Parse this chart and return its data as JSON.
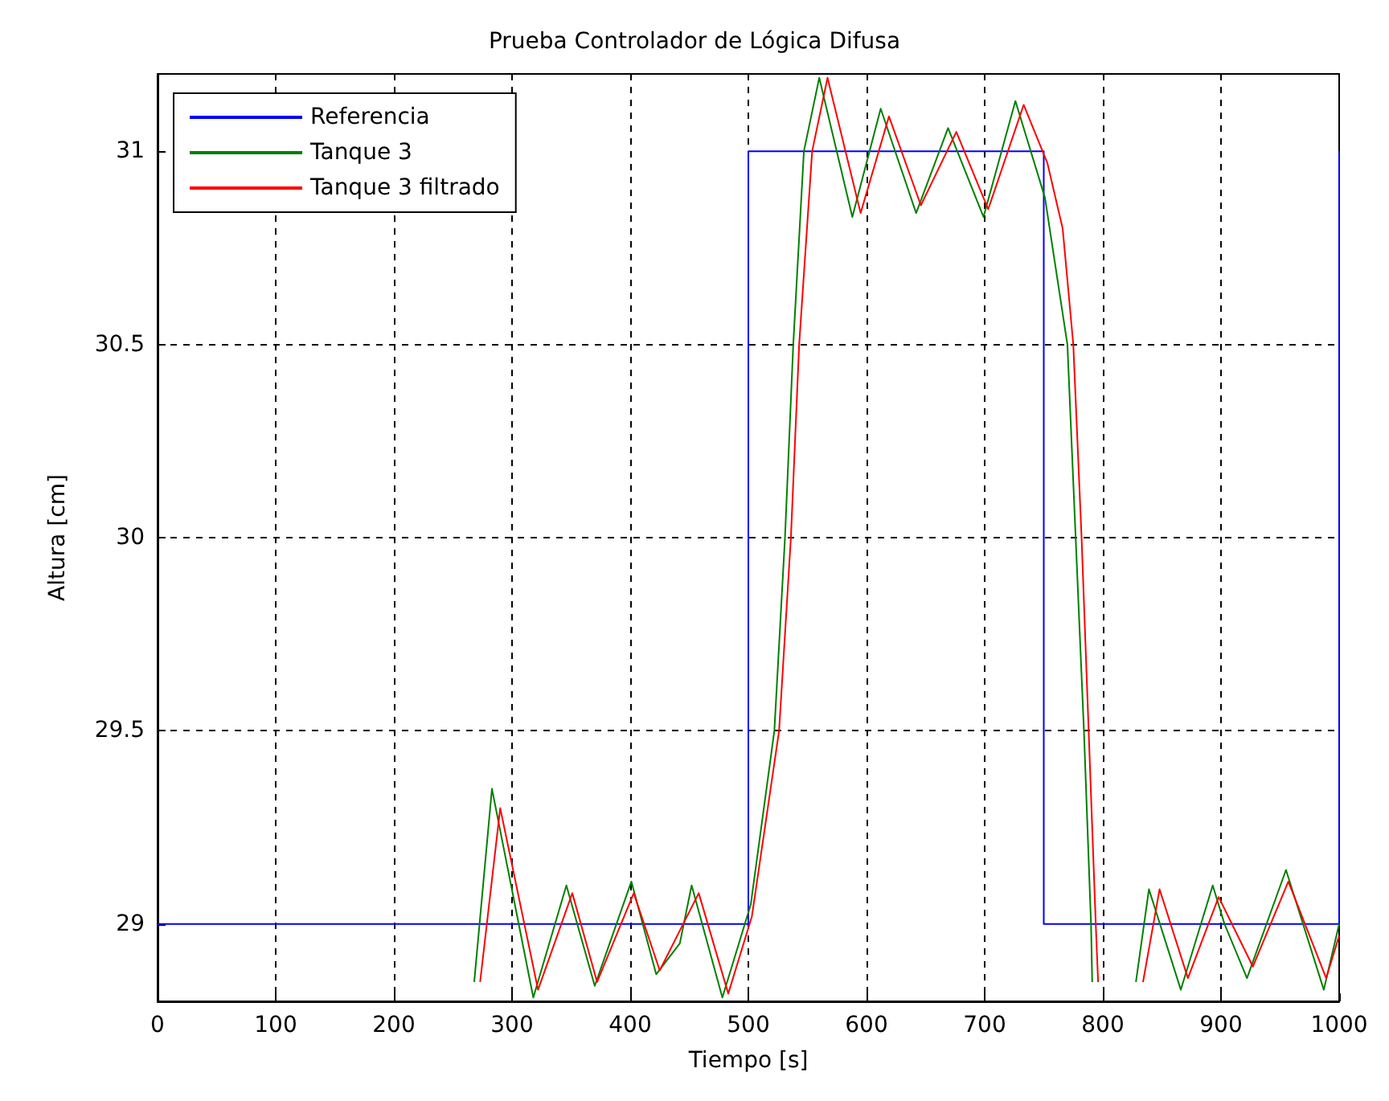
{
  "chart_data": {
    "type": "line",
    "title": "Prueba Controlador de Lógica Difusa",
    "xlabel": "Tiempo [s]",
    "ylabel": "Altura [cm]",
    "xlim": [
      0,
      1000
    ],
    "xticks": [
      0,
      100,
      200,
      300,
      400,
      500,
      600,
      700,
      800,
      900,
      1000
    ],
    "ylim": [
      28.8,
      31.2
    ],
    "yticks": [
      29,
      29.5,
      30,
      30.5,
      31
    ],
    "grid": true,
    "legend": "top left",
    "marker": "none",
    "line_style": "solid",
    "series": [
      {
        "name": "Referencia",
        "type": "step",
        "color": "#0000ff",
        "x": [
          0,
          500,
          750,
          1000
        ],
        "values": [
          29,
          31,
          29,
          31
        ]
      },
      {
        "name": "Tanque 3",
        "color": "#008000",
        "x": [
          268,
          283,
          318,
          346,
          370,
          401,
          422,
          442,
          452,
          478,
          502,
          522,
          531,
          538,
          547,
          560,
          588,
          612,
          642,
          669,
          699,
          726,
          751,
          770,
          777,
          784,
          790,
          791,
          810,
          828,
          839,
          866,
          893,
          903,
          922,
          955,
          987,
          1000
        ],
        "values": [
          28.85,
          29.35,
          28.81,
          29.1,
          28.84,
          29.11,
          28.87,
          28.95,
          29.1,
          28.81,
          29.05,
          29.5,
          30,
          30.5,
          31,
          31.19,
          30.83,
          31.11,
          30.84,
          31.06,
          30.83,
          31.13,
          30.88,
          30.5,
          30,
          29.5,
          29,
          28.85,
          null,
          28.85,
          29.09,
          28.83,
          29.1,
          29.0,
          28.86,
          29.14,
          28.83,
          29.0
        ]
      },
      {
        "name": "Tanque 3 filtrado",
        "color": "#ff0000",
        "x": [
          273,
          290,
          322,
          351,
          372,
          403,
          425,
          458,
          483,
          503,
          526,
          536,
          543,
          554,
          567,
          595,
          619,
          646,
          676,
          703,
          733,
          753,
          766,
          775,
          782,
          788,
          794,
          796,
          815,
          834,
          848,
          872,
          898,
          927,
          957,
          989,
          1000
        ],
        "values": [
          28.85,
          29.3,
          28.83,
          29.08,
          28.85,
          29.08,
          28.88,
          29.08,
          28.82,
          29.02,
          29.5,
          30,
          30.5,
          31,
          31.19,
          30.84,
          31.09,
          30.86,
          31.05,
          30.85,
          31.12,
          30.97,
          30.8,
          30.5,
          30,
          29.5,
          29,
          28.85,
          null,
          28.85,
          29.09,
          28.86,
          29.07,
          28.89,
          29.11,
          28.86,
          28.97
        ]
      }
    ]
  }
}
